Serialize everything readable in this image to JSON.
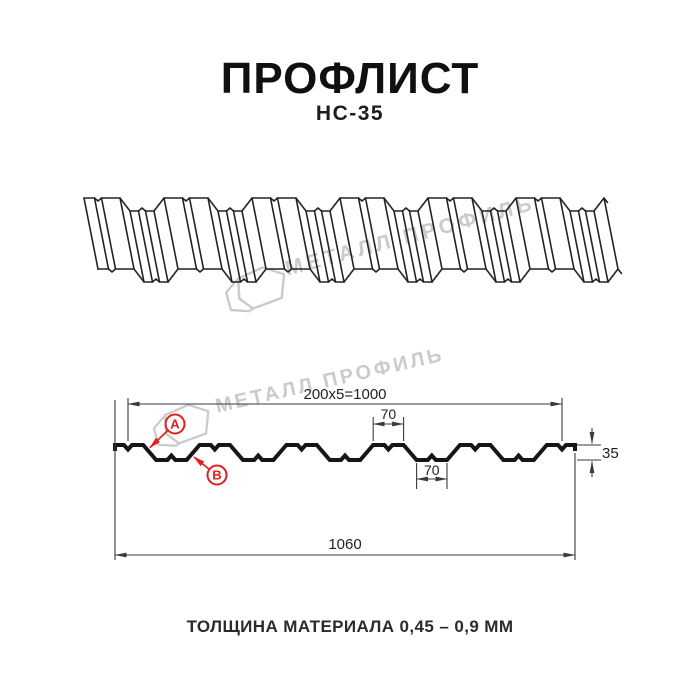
{
  "header": {
    "title": "ПРОФЛИСТ",
    "subtitle": "НС-35"
  },
  "watermark": {
    "text": "МЕТАЛЛ ПРОФИЛЬ"
  },
  "section": {
    "dimensions": {
      "coverage": "200x5=1000",
      "top_flat": "70",
      "bottom_flat": "70",
      "height": "35",
      "overall_width": "1060"
    },
    "callouts": {
      "a": "A",
      "b": "B"
    },
    "geometry_mm": {
      "overall_width": 1060,
      "coverage_width": 1000,
      "module": 200,
      "modules": 5,
      "flat_width": 70,
      "height": 35
    }
  },
  "footer": {
    "caption": "ТОЛЩИНА МАТЕРИАЛА 0,45 – 0,9 ММ"
  },
  "colors": {
    "line": "#161616",
    "dimension": "#3a3a3a",
    "callout_red": "#e0201e",
    "watermark": "#cbcbcb"
  }
}
